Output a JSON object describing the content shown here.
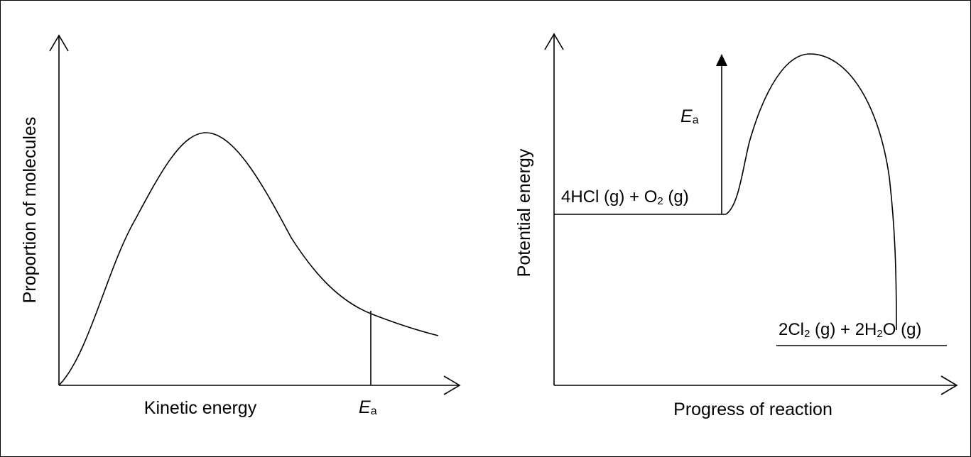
{
  "left_diagram": {
    "y_axis_label": "Proportion of molecules",
    "x_axis_label": "Kinetic energy",
    "ea_label": {
      "main": "E",
      "sub": "a"
    }
  },
  "right_diagram": {
    "y_axis_label": "Potential energy",
    "x_axis_label": "Progress of reaction",
    "ea_label": {
      "main": "E",
      "sub": "a"
    },
    "reactants": {
      "p1": "4HCl (g) + O",
      "p1_sub": "2",
      "p2": " (g)"
    },
    "products": {
      "p1": "2Cl",
      "p1_sub": "2",
      "p2": " (g) + 2H",
      "p2_sub": "2",
      "p3": "O (g)"
    }
  }
}
